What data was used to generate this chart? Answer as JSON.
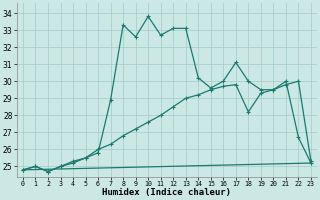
{
  "xlabel": "Humidex (Indice chaleur)",
  "background_color": "#cce8e4",
  "grid_color": "#aacfcc",
  "line_color": "#1a7a6e",
  "ylim": [
    24.4,
    34.6
  ],
  "xlim": [
    -0.5,
    23.5
  ],
  "yticks": [
    25,
    26,
    27,
    28,
    29,
    30,
    31,
    32,
    33,
    34
  ],
  "xticks": [
    0,
    1,
    2,
    3,
    4,
    5,
    6,
    7,
    8,
    9,
    10,
    11,
    12,
    13,
    14,
    15,
    16,
    17,
    18,
    19,
    20,
    21,
    22,
    23
  ],
  "line1_x": [
    0,
    1,
    2,
    3,
    4,
    5,
    6,
    7,
    8,
    9,
    10,
    11,
    12,
    13,
    14,
    15,
    16,
    17,
    18,
    19,
    20,
    21,
    22,
    23
  ],
  "line1_y": [
    24.8,
    25.0,
    24.7,
    25.0,
    25.2,
    25.5,
    25.8,
    28.9,
    33.3,
    32.6,
    33.8,
    32.7,
    33.1,
    33.1,
    30.2,
    29.6,
    30.0,
    31.1,
    30.0,
    29.5,
    29.5,
    30.0,
    26.7,
    25.2
  ],
  "line2_x": [
    0,
    1,
    2,
    3,
    4,
    5,
    6,
    7,
    8,
    9,
    10,
    11,
    12,
    13,
    14,
    15,
    16,
    17,
    18,
    19,
    20,
    21,
    22,
    23
  ],
  "line2_y": [
    24.8,
    25.0,
    24.7,
    25.0,
    25.3,
    25.5,
    26.0,
    26.3,
    26.8,
    27.2,
    27.6,
    28.0,
    28.5,
    29.0,
    29.2,
    29.5,
    29.7,
    29.8,
    28.2,
    29.3,
    29.5,
    29.8,
    30.0,
    25.3
  ],
  "line3_x": [
    0,
    23
  ],
  "line3_y": [
    24.8,
    25.2
  ]
}
